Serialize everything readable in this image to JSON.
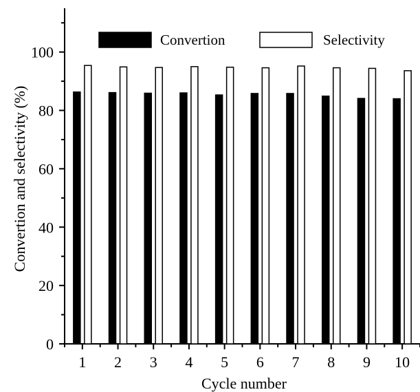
{
  "chart_data": {
    "type": "bar",
    "title": "",
    "xlabel": "Cycle number",
    "ylabel": "Convertion and selectivity  (%)",
    "categories": [
      "1",
      "2",
      "3",
      "4",
      "5",
      "6",
      "7",
      "8",
      "9",
      "10"
    ],
    "series": [
      {
        "name": "Convertion",
        "values": [
          86.3,
          86.1,
          85.9,
          86.0,
          85.3,
          85.8,
          85.8,
          84.9,
          84.1,
          84.0
        ],
        "fill": "#000000"
      },
      {
        "name": "Selectivity",
        "values": [
          95.4,
          94.9,
          94.7,
          95.0,
          94.8,
          94.6,
          95.2,
          94.6,
          94.4,
          93.6
        ],
        "fill": "#ffffff"
      }
    ],
    "ylim": [
      0,
      115
    ],
    "yticks": [
      0,
      20,
      40,
      60,
      80,
      100
    ],
    "xrange": [
      0.5,
      10.5
    ],
    "grid": false,
    "legend_position": "top",
    "colors": {
      "axis": "#000000",
      "bar_outline": "#000000"
    }
  }
}
